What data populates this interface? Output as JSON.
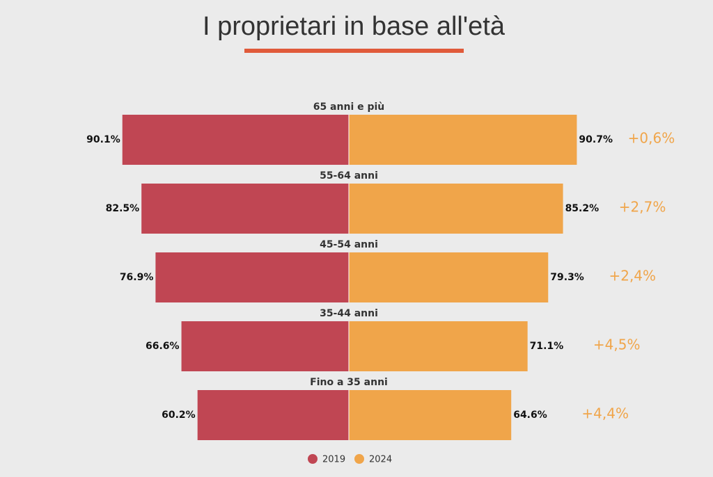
{
  "chart_data": {
    "type": "butterfly-bar",
    "title": "I proprietari in base all'età",
    "categories": [
      "65 anni e più",
      "55-64 anni",
      "45-54 anni",
      "35-44 anni",
      "Fino a 35 anni"
    ],
    "series": [
      {
        "name": "2019",
        "color": "#c04653",
        "values": [
          90.1,
          82.5,
          76.9,
          66.6,
          60.2
        ],
        "value_labels": [
          "90.1%",
          "82.5%",
          "76.9%",
          "66.6%",
          "60.2%"
        ]
      },
      {
        "name": "2024",
        "color": "#f0a54a",
        "values": [
          90.7,
          85.2,
          79.3,
          71.1,
          64.6
        ],
        "value_labels": [
          "90.7%",
          "85.2%",
          "79.3%",
          "71.1%",
          "64.6%"
        ]
      }
    ],
    "annotations": [
      "+0,6%",
      "+2,7%",
      "+2,4%",
      "+4,5%",
      "+4,4%"
    ],
    "annotation_color": "#f0a54a"
  }
}
